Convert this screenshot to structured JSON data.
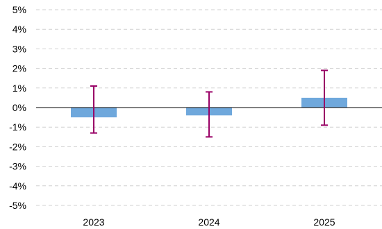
{
  "chart_data": {
    "type": "bar",
    "categories": [
      "2023",
      "2024",
      "2025"
    ],
    "series": [
      {
        "values": [
          -0.5,
          -0.4,
          0.5
        ],
        "error_low": [
          -1.3,
          -1.5,
          -0.9
        ],
        "error_high": [
          1.1,
          0.8,
          1.9
        ]
      }
    ],
    "ylim": [
      -5,
      5
    ],
    "y_ticks": [
      "5%",
      "4%",
      "3%",
      "2%",
      "1%",
      "0%",
      "-1%",
      "-2%",
      "-3%",
      "-4%",
      "-5%"
    ],
    "grid": true,
    "legend": "none",
    "colors": {
      "bar": "#6fa8dc",
      "error_bar": "#990066",
      "grid": "#d0d0d0",
      "zero_line": "#000000"
    }
  }
}
